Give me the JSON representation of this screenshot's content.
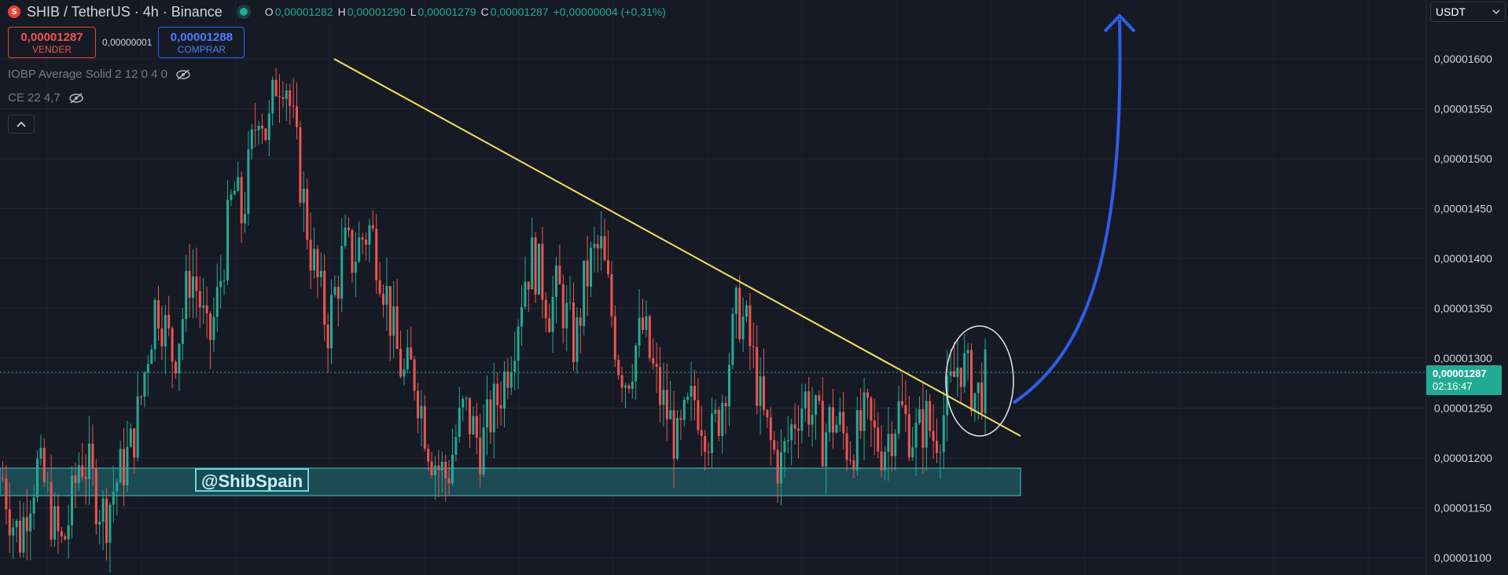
{
  "header": {
    "symbol_title": "SHIB / TetherUS · 4h · Binance",
    "ohlc": [
      {
        "key": "O",
        "value": "0,00001282"
      },
      {
        "key": "H",
        "value": "0,00001290"
      },
      {
        "key": "L",
        "value": "0,00001279"
      },
      {
        "key": "C",
        "value": "0,00001287"
      },
      {
        "key": "",
        "value": "+0,00000004 (+0,31%)"
      }
    ]
  },
  "trade": {
    "sell_price": "0,00001287",
    "sell_label": "VENDER",
    "spread": "0,00000001",
    "buy_price": "0,00001288",
    "buy_label": "COMPRAR"
  },
  "indicators": [
    {
      "label": "IOBP Average Solid 2 12 0 4 0"
    },
    {
      "label": "CE 22 4,7"
    }
  ],
  "currency_selector": "USDT",
  "current_price": {
    "price": "0,00001287",
    "countdown": "02:16:47"
  },
  "watermark": "@ShibSpain",
  "colors": {
    "background": "#161a25",
    "up": "#22ab94",
    "down": "#ef5350",
    "trendline": "#f2e35b",
    "support_zone": "#1f5f66",
    "arrow": "#2f5ee8"
  },
  "chart_data": {
    "type": "candlestick",
    "y_axis_ticks": [
      "0,00001600",
      "0,00001550",
      "0,00001500",
      "0,00001450",
      "0,00001400",
      "0,00001350",
      "0,00001300",
      "0,00001250",
      "0,00001200",
      "0,00001150",
      "0,00001100"
    ],
    "ylim": [
      1.085e-05,
      1.64e-05
    ],
    "grid": true,
    "annotations": {
      "trendline": {
        "from": 1.6e-05,
        "to": 1.221e-05
      },
      "support_zone": [
        1.163e-05,
        1.191e-05
      ],
      "highlight": "breakout circle",
      "projection": "upward arrow"
    },
    "price_path": [
      1.18e-05,
      1.14e-05,
      1.12e-05,
      1.16e-05,
      1.19e-05,
      1.17e-05,
      1.13e-05,
      1.11e-05,
      1.15e-05,
      1.2e-05,
      1.19e-05,
      1.16e-05,
      1.14e-05,
      1.17e-05,
      1.19e-05,
      1.21e-05,
      1.25e-05,
      1.31e-05,
      1.36e-05,
      1.33e-05,
      1.3e-05,
      1.34e-05,
      1.39e-05,
      1.36e-05,
      1.31e-05,
      1.35e-05,
      1.41e-05,
      1.47e-05,
      1.44e-05,
      1.5e-05,
      1.56e-05,
      1.52e-05,
      1.58e-05,
      1.59e-05,
      1.53e-05,
      1.47e-05,
      1.41e-05,
      1.37e-05,
      1.33e-05,
      1.37e-05,
      1.41e-05,
      1.4e-05,
      1.42e-05,
      1.43e-05,
      1.4e-05,
      1.36e-05,
      1.31e-05,
      1.28e-05,
      1.29e-05,
      1.25e-05,
      1.21e-05,
      1.19e-05,
      1.18e-05,
      1.22e-05,
      1.25e-05,
      1.23e-05,
      1.21e-05,
      1.24e-05,
      1.26e-05,
      1.29e-05,
      1.33e-05,
      1.38e-05,
      1.4e-05,
      1.38e-05,
      1.35e-05,
      1.37e-05,
      1.34e-05,
      1.31e-05,
      1.37e-05,
      1.4e-05,
      1.41e-05,
      1.36e-05,
      1.3e-05,
      1.28e-05,
      1.31e-05,
      1.33e-05,
      1.29e-05,
      1.26e-05,
      1.24e-05,
      1.21e-05,
      1.24e-05,
      1.26e-05,
      1.24e-05,
      1.22e-05,
      1.25e-05,
      1.3e-05,
      1.35e-05,
      1.33e-05,
      1.29e-05,
      1.24e-05,
      1.21e-05,
      1.19e-05,
      1.22e-05,
      1.25e-05,
      1.26e-05,
      1.24e-05,
      1.22e-05,
      1.24e-05,
      1.23e-05,
      1.21e-05,
      1.22e-05,
      1.24e-05,
      1.22e-05,
      1.21e-05,
      1.23e-05,
      1.25e-05,
      1.23e-05,
      1.22e-05,
      1.24e-05,
      1.22e-05,
      1.24e-05,
      1.27e-05,
      1.3e-05,
      1.28e-05,
      1.26e-05,
      1.28e-05
    ]
  }
}
